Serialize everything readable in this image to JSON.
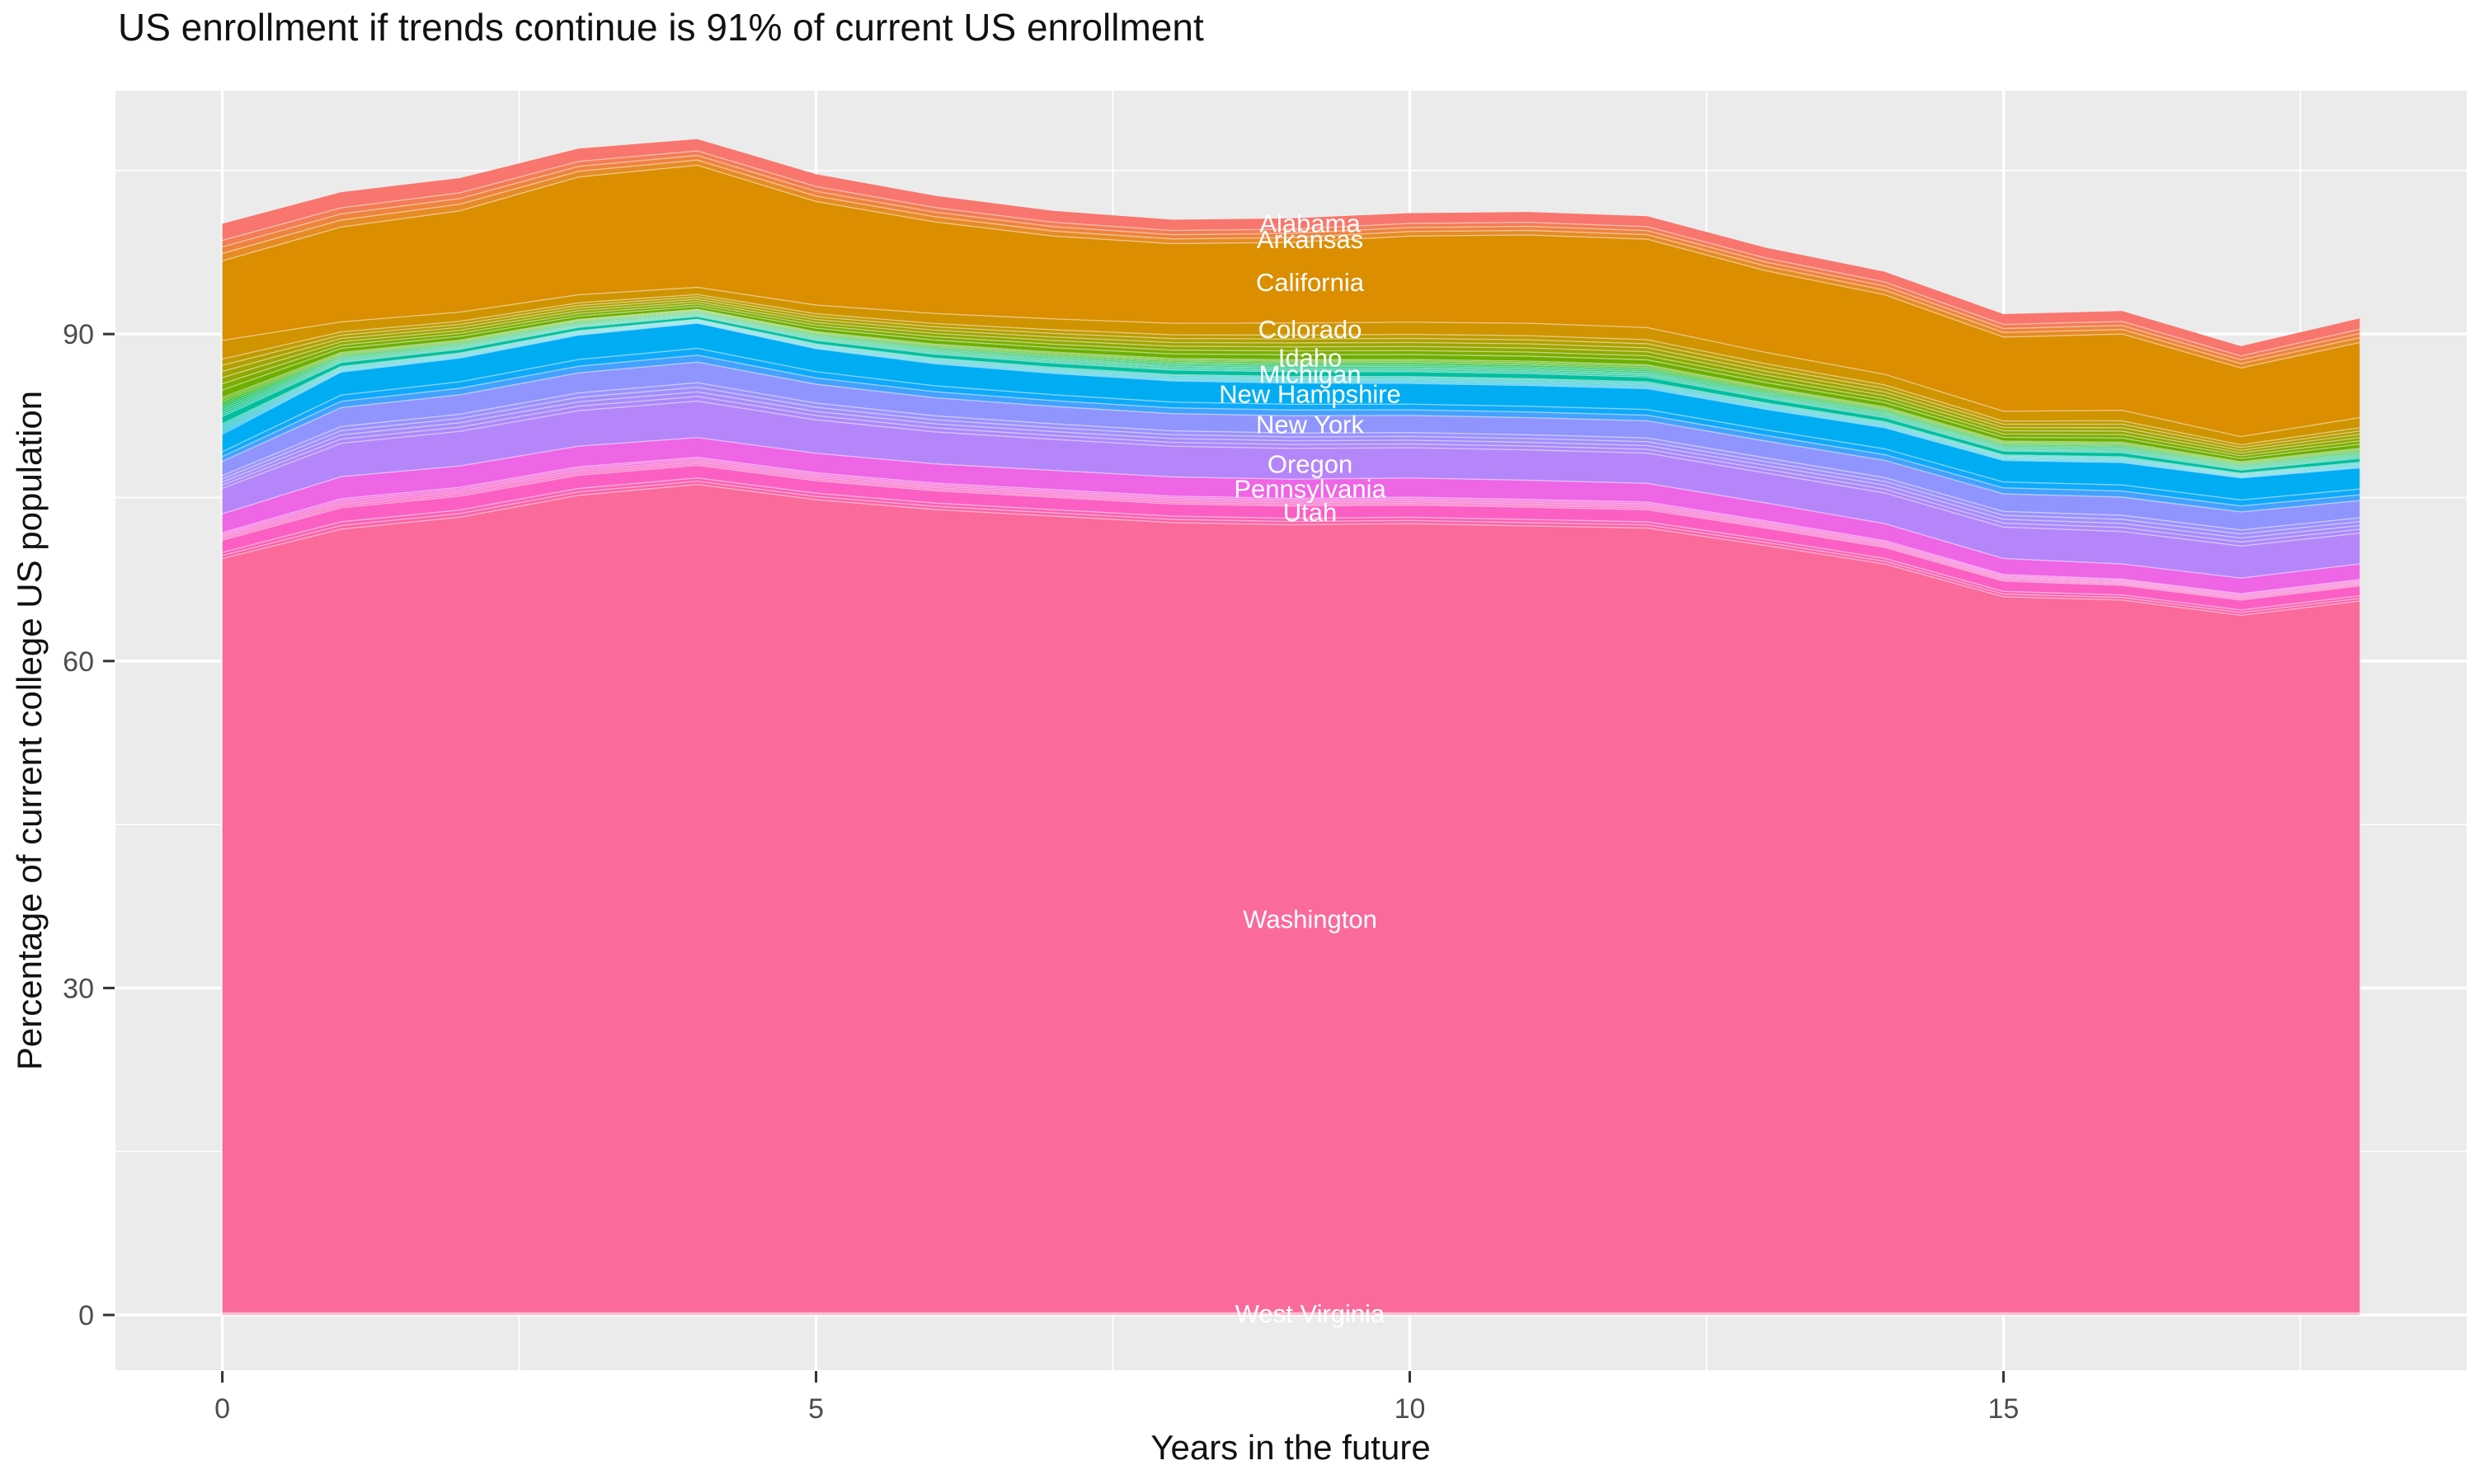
{
  "title": "US enrollment if trends continue is 91% of current US enrollment",
  "axes": {
    "x_title": "Years in the future",
    "y_title": "Percentage of current college US population",
    "x_ticks": [
      0,
      5,
      10,
      15
    ],
    "x_tick_labels": [
      "0",
      "5",
      "10",
      "15"
    ],
    "y_ticks": [
      0,
      30,
      60,
      90
    ],
    "y_tick_labels": [
      "0",
      "30",
      "60",
      "90"
    ],
    "x_minor": [
      2.5,
      7.5,
      12.5,
      17.5
    ],
    "y_minor": [
      15,
      45,
      75,
      105
    ],
    "x_domain": [
      -0.9,
      18.9
    ],
    "y_domain": [
      -5.07,
      112.33
    ]
  },
  "colors": {
    "panel_bg": "#EBEBEB",
    "grid": "#FFFFFF",
    "tick_mark": "#333333",
    "tick_label": "#4D4D4D",
    "title_text": "#111111",
    "state_label_text": "#FFFFFF",
    "band_edge": "rgba(255,255,255,0.45)"
  },
  "chart_data": {
    "type": "area",
    "stacked": true,
    "title": "US enrollment if trends continue is 91% of current US enrollment",
    "xlabel": "Years in the future",
    "ylabel": "Percentage of current college US population",
    "x": [
      0,
      1,
      2,
      3,
      4,
      5,
      6,
      7,
      8,
      9,
      10,
      11,
      12,
      13,
      14,
      15,
      16,
      17,
      18
    ],
    "total_by_year": [
      100.1,
      103.0,
      104.3,
      107.0,
      107.9,
      104.6,
      102.7,
      101.3,
      100.5,
      100.6,
      101.1,
      101.2,
      100.8,
      97.9,
      95.7,
      91.8,
      92.1,
      88.9,
      91.0
    ],
    "final_share_of_current": "91%",
    "label_x_year": 9.16,
    "labeled_states": [
      "Alabama",
      "Arkansas",
      "California",
      "Colorado",
      "Idaho",
      "Michigan",
      "New Hampshire",
      "New York",
      "Oregon",
      "Pennsylvania",
      "Utah",
      "Washington",
      "West Virginia"
    ],
    "bands": [
      {
        "id": "sliver-group-bottom",
        "label": null,
        "const": 0.12,
        "members": [
          {
            "color": "#FD747B",
            "fraction": 0.5
          },
          {
            "color": "#FD7185",
            "fraction": 0.5
          }
        ]
      },
      {
        "id": "west-virginia",
        "label": "West Virginia",
        "color": "#FC6E8F",
        "const": 0.08
      },
      {
        "id": "washington",
        "label": "Washington",
        "color": "#FA6A9B",
        "values": [
          69.2,
          71.9,
          73.0,
          75.0,
          76.0,
          74.6,
          73.7,
          73.1,
          72.5,
          72.3,
          72.4,
          72.2,
          72.0,
          70.4,
          68.7,
          65.7,
          65.4,
          64.0,
          65.3
        ]
      },
      {
        "id": "sliver-group-vt-va",
        "label": null,
        "values": [
          0.57,
          0.67,
          0.66,
          0.63,
          0.6,
          0.6,
          0.59,
          0.59,
          0.59,
          0.59,
          0.59,
          0.59,
          0.57,
          0.55,
          0.52,
          0.49,
          0.46,
          0.48,
          0.48
        ],
        "members": [
          {
            "color": "#FD63A8",
            "fraction": 0.5
          },
          {
            "color": "#FC61B4",
            "fraction": 0.5
          }
        ]
      },
      {
        "id": "utah",
        "label": "Utah",
        "color": "#FB5FC4",
        "values": [
          1.11,
          1.3,
          1.27,
          1.22,
          1.16,
          1.15,
          1.13,
          1.13,
          1.13,
          1.13,
          1.13,
          1.13,
          1.11,
          1.05,
          1.0,
          0.95,
          0.89,
          0.92,
          0.92
        ]
      },
      {
        "id": "sliver-group-ri-tx",
        "label": null,
        "values": [
          0.7,
          0.82,
          0.8,
          0.77,
          0.73,
          0.72,
          0.71,
          0.71,
          0.71,
          0.71,
          0.71,
          0.71,
          0.7,
          0.66,
          0.63,
          0.6,
          0.56,
          0.58,
          0.58
        ],
        "members": [
          {
            "color": "#FA5DBC",
            "fraction": 0.2
          },
          {
            "color": "#F95EC4",
            "fraction": 0.2
          },
          {
            "color": "#F75FCC",
            "fraction": 0.2
          },
          {
            "color": "#F560D4",
            "fraction": 0.2
          },
          {
            "color": "#F262DC",
            "fraction": 0.2
          }
        ]
      },
      {
        "id": "pennsylvania",
        "label": "Pennsylvania",
        "color": "#EE65E5",
        "values": [
          1.72,
          2.02,
          1.97,
          1.89,
          1.81,
          1.79,
          1.76,
          1.76,
          1.76,
          1.76,
          1.76,
          1.76,
          1.72,
          1.64,
          1.55,
          1.47,
          1.39,
          1.43,
          1.43
        ]
      },
      {
        "id": "oregon",
        "label": "Oregon",
        "color": "#B586F9",
        "values": [
          2.34,
          3.07,
          3.17,
          3.26,
          3.36,
          3.07,
          2.94,
          2.85,
          2.82,
          2.82,
          2.78,
          2.78,
          2.78,
          2.75,
          2.82,
          2.88,
          2.98,
          2.94,
          2.82
        ]
      },
      {
        "id": "sliver-group-nc-ok",
        "label": null,
        "values": [
          1.17,
          1.54,
          1.58,
          1.63,
          1.68,
          1.54,
          1.47,
          1.42,
          1.41,
          1.41,
          1.39,
          1.39,
          1.39,
          1.38,
          1.41,
          1.44,
          1.49,
          1.47,
          1.41
        ],
        "members": [
          {
            "color": "#AC89FB",
            "fraction": 0.25
          },
          {
            "color": "#A78CFC",
            "fraction": 0.25
          },
          {
            "color": "#A18FFD",
            "fraction": 0.25
          },
          {
            "color": "#9B92FE",
            "fraction": 0.25
          }
        ]
      },
      {
        "id": "new-york",
        "label": "New York",
        "color": "#9095FD",
        "values": [
          1.31,
          1.73,
          1.78,
          1.84,
          1.89,
          1.73,
          1.66,
          1.6,
          1.58,
          1.58,
          1.57,
          1.57,
          1.57,
          1.55,
          1.58,
          1.62,
          1.67,
          1.66,
          1.58
        ]
      },
      {
        "id": "sliver-group-nj-nm",
        "label": null,
        "values": [
          0.88,
          1.15,
          1.19,
          1.22,
          1.26,
          1.15,
          1.1,
          1.07,
          1.06,
          1.06,
          1.04,
          1.04,
          1.04,
          1.03,
          1.06,
          1.08,
          1.12,
          1.1,
          1.06
        ],
        "members": [
          {
            "color": "#45A1FE",
            "fraction": 0.5
          },
          {
            "color": "#0FA9FA",
            "fraction": 0.5
          }
        ]
      },
      {
        "id": "new-hampshire",
        "label": "New Hampshire",
        "color": "#00ADF3",
        "values": [
          1.61,
          2.11,
          2.18,
          2.24,
          2.31,
          2.11,
          2.02,
          1.96,
          1.94,
          1.94,
          1.91,
          1.91,
          1.91,
          1.89,
          1.94,
          1.98,
          2.05,
          2.02,
          1.94
        ]
      },
      {
        "id": "sliver-group-mn-nv",
        "label": null,
        "values": [
          0.95,
          0.51,
          0.46,
          0.41,
          0.36,
          0.44,
          0.51,
          0.55,
          0.58,
          0.61,
          0.62,
          0.63,
          0.62,
          0.57,
          0.54,
          0.5,
          0.53,
          0.42,
          0.51
        ],
        "members": [
          {
            "color": "#00B4E4",
            "fraction": 0.167
          },
          {
            "color": "#00B8DA",
            "fraction": 0.167
          },
          {
            "color": "#00BBCF",
            "fraction": 0.167
          },
          {
            "color": "#00BDC4",
            "fraction": 0.167
          },
          {
            "color": "#00BEB9",
            "fraction": 0.166
          },
          {
            "color": "#00BFAD",
            "fraction": 0.166
          }
        ]
      },
      {
        "id": "michigan",
        "label": "Michigan",
        "color": "#00BF9F",
        "values": [
          0.69,
          0.37,
          0.34,
          0.3,
          0.26,
          0.32,
          0.37,
          0.4,
          0.42,
          0.44,
          0.45,
          0.46,
          0.45,
          0.42,
          0.39,
          0.36,
          0.38,
          0.3,
          0.37
        ]
      },
      {
        "id": "sliver-group-il-ma",
        "label": null,
        "values": [
          1.72,
          0.92,
          0.84,
          0.74,
          0.66,
          0.8,
          0.92,
          1.0,
          1.06,
          1.1,
          1.12,
          1.14,
          1.12,
          1.04,
          0.98,
          0.9,
          0.96,
          0.76,
          0.92
        ],
        "members": [
          {
            "color": "#00BF92",
            "fraction": 0.111
          },
          {
            "color": "#00BF85",
            "fraction": 0.111
          },
          {
            "color": "#00BE75",
            "fraction": 0.111
          },
          {
            "color": "#00BD62",
            "fraction": 0.111
          },
          {
            "color": "#00BB4D",
            "fraction": 0.111
          },
          {
            "color": "#00B930",
            "fraction": 0.111
          },
          {
            "color": "#26B600",
            "fraction": 0.111
          },
          {
            "color": "#44B300",
            "fraction": 0.111
          },
          {
            "color": "#59B000",
            "fraction": 0.112
          }
        ]
      },
      {
        "id": "idaho",
        "label": "Idaho",
        "color": "#6CAF00",
        "values": [
          0.69,
          0.37,
          0.34,
          0.3,
          0.26,
          0.32,
          0.37,
          0.4,
          0.42,
          0.44,
          0.45,
          0.46,
          0.45,
          0.42,
          0.39,
          0.36,
          0.38,
          0.3,
          0.37
        ]
      },
      {
        "id": "sliver-group-ct-hi",
        "label": null,
        "values": [
          2.84,
          1.52,
          1.39,
          1.22,
          1.09,
          1.32,
          1.52,
          1.65,
          1.75,
          1.82,
          1.85,
          1.88,
          1.85,
          1.72,
          1.62,
          1.49,
          1.58,
          1.25,
          1.52
        ],
        "members": [
          {
            "color": "#7CAD00",
            "fraction": 0.2
          },
          {
            "color": "#90A900",
            "fraction": 0.2
          },
          {
            "color": "#A1A500",
            "fraction": 0.2
          },
          {
            "color": "#B1A000",
            "fraction": 0.2
          },
          {
            "color": "#C09B00",
            "fraction": 0.2
          }
        ]
      },
      {
        "id": "colorado",
        "label": "Colorado",
        "color": "#D09400",
        "values": [
          1.72,
          0.92,
          0.84,
          0.74,
          0.66,
          0.8,
          0.92,
          1.0,
          1.06,
          1.1,
          1.12,
          1.14,
          1.12,
          1.04,
          0.98,
          0.9,
          0.96,
          0.76,
          0.92
        ]
      },
      {
        "id": "california",
        "label": "California",
        "color": "#DB8E00",
        "values": [
          7.3,
          8.7,
          9.3,
          10.8,
          11.2,
          9.5,
          8.4,
          7.6,
          7.3,
          7.4,
          7.9,
          8.1,
          8.1,
          7.5,
          7.3,
          6.8,
          7.0,
          6.3,
          6.9
        ]
      },
      {
        "id": "arkansas",
        "label": "Arkansas",
        "color": "#E68C25",
        "values": [
          0.68,
          0.64,
          0.6,
          0.52,
          0.48,
          0.5,
          0.48,
          0.46,
          0.44,
          0.44,
          0.42,
          0.42,
          0.42,
          0.42,
          0.42,
          0.42,
          0.42,
          0.4,
          0.44
        ]
      },
      {
        "id": "sliver-group-ak-az",
        "label": null,
        "values": [
          1.19,
          1.12,
          1.05,
          0.91,
          0.84,
          0.88,
          0.84,
          0.81,
          0.77,
          0.77,
          0.74,
          0.74,
          0.74,
          0.74,
          0.74,
          0.74,
          0.74,
          0.7,
          0.77
        ],
        "members": [
          {
            "color": "#EE843D",
            "fraction": 0.5
          },
          {
            "color": "#F37D55",
            "fraction": 0.5
          }
        ]
      },
      {
        "id": "alabama",
        "label": "Alabama",
        "color": "#F8766D",
        "values": [
          1.53,
          1.44,
          1.35,
          1.17,
          1.08,
          1.13,
          1.08,
          1.04,
          0.99,
          0.99,
          0.95,
          0.95,
          0.95,
          0.95,
          0.95,
          0.95,
          0.95,
          0.9,
          0.99
        ]
      }
    ]
  }
}
